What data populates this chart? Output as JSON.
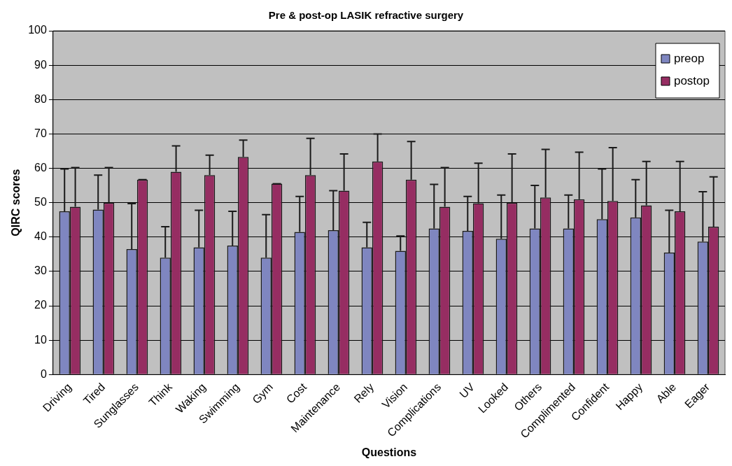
{
  "chart_data": {
    "type": "bar",
    "title": "Pre & post-op LASIK refractive surgery",
    "xlabel": "Questions",
    "ylabel": "QIRC scores",
    "categories": [
      "Driving",
      "Tired",
      "Sunglasses",
      "Think",
      "Waking",
      "Swimming",
      "Gym",
      "Cost",
      "Maintenance",
      "Rely",
      "Vision",
      "Complications",
      "UV",
      "Looked",
      "Others",
      "Complimented",
      "Confident",
      "Happy",
      "Able",
      "Eager"
    ],
    "series": [
      {
        "name": "preop",
        "color": "#7f86c0",
        "values": [
          47.5,
          48,
          36.5,
          34,
          37,
          37.5,
          34,
          41.5,
          42,
          37,
          36,
          42.5,
          41.8,
          39.5,
          42.5,
          42.5,
          45.2,
          45.7,
          35.5,
          38.7
        ],
        "errors": [
          [
            47.5,
            59.8
          ],
          [
            48,
            58
          ],
          [
            36.5,
            49.7
          ],
          [
            34,
            43
          ],
          [
            37,
            47.8
          ],
          [
            37.5,
            47.5
          ],
          [
            34,
            46.5
          ],
          [
            41.5,
            51.8
          ],
          [
            42,
            53.5
          ],
          [
            37,
            44.3
          ],
          [
            36,
            40.3
          ],
          [
            42.5,
            55.3
          ],
          [
            41.8,
            51.8
          ],
          [
            39.5,
            52.2
          ],
          [
            42.5,
            55
          ],
          [
            42.5,
            52.2
          ],
          [
            45.2,
            59.8
          ],
          [
            45.7,
            56.7
          ],
          [
            35.5,
            47.8
          ],
          [
            38.7,
            53.2
          ]
        ]
      },
      {
        "name": "postop",
        "color": "#962d62",
        "values": [
          48.8,
          50,
          56.7,
          59,
          58,
          63.3,
          55.5,
          58,
          53.5,
          62,
          56.7,
          48.8,
          49.8,
          50,
          51.5,
          51,
          50.5,
          49.2,
          47.5,
          43
        ],
        "errors": [
          [
            48.8,
            60.2
          ],
          [
            50,
            60.2
          ],
          [
            56.7,
            56.7
          ],
          [
            59,
            66.5
          ],
          [
            58,
            63.8
          ],
          [
            63.3,
            68.2
          ],
          [
            55.5,
            55.5
          ],
          [
            58,
            68.7
          ],
          [
            53.5,
            64.2
          ],
          [
            62,
            70
          ],
          [
            56.7,
            67.8
          ],
          [
            48.8,
            60.2
          ],
          [
            49.8,
            61.5
          ],
          [
            50,
            64.2
          ],
          [
            51.5,
            65.5
          ],
          [
            51,
            64.7
          ],
          [
            50.5,
            66
          ],
          [
            49.2,
            62
          ],
          [
            47.5,
            62
          ],
          [
            43,
            57.5
          ]
        ]
      }
    ],
    "ylim": [
      0,
      100
    ],
    "yticks": [
      0,
      10,
      20,
      30,
      40,
      50,
      60,
      70,
      80,
      90,
      100
    ],
    "grid": "y",
    "legend": "top right"
  }
}
